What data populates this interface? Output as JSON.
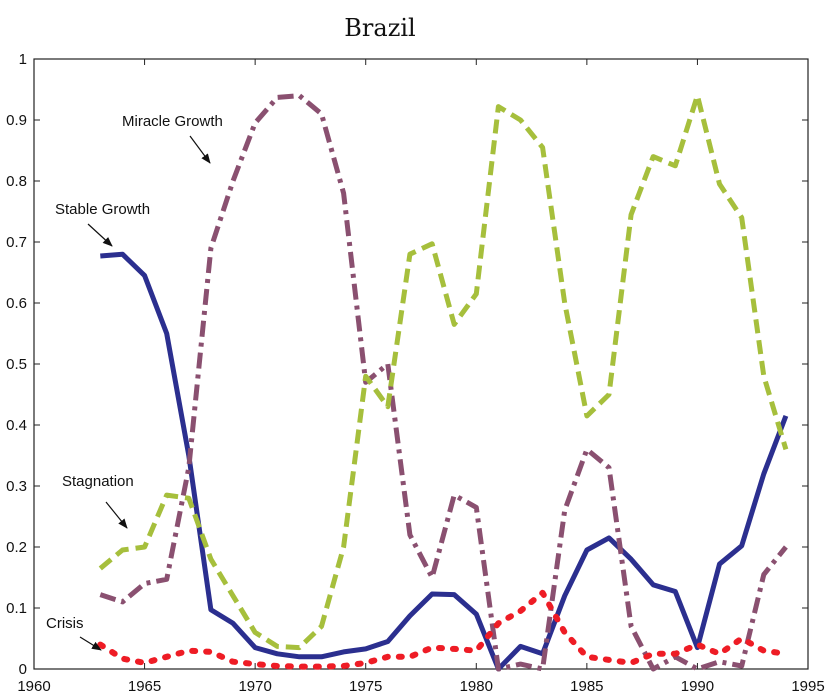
{
  "chart_data": {
    "type": "line",
    "title": "Brazil",
    "xlabel": "",
    "ylabel": "",
    "xlim": [
      1960,
      1995
    ],
    "ylim": [
      0,
      1
    ],
    "grid": false,
    "x_ticks": [
      "1960",
      "1965",
      "1970",
      "1975",
      "1980",
      "1985",
      "1990",
      "1995"
    ],
    "y_ticks": [
      "0",
      "0.1",
      "0.2",
      "0.3",
      "0.4",
      "0.5",
      "0.6",
      "0.7",
      "0.8",
      "0.9",
      "1"
    ],
    "x": [
      1963,
      1964,
      1965,
      1966,
      1967,
      1968,
      1969,
      1970,
      1971,
      1972,
      1973,
      1974,
      1975,
      1976,
      1977,
      1978,
      1979,
      1980,
      1981,
      1982,
      1983,
      1984,
      1985,
      1986,
      1987,
      1988,
      1989,
      1990,
      1991,
      1992,
      1993,
      1994
    ],
    "series": [
      {
        "name": "Stable Growth",
        "color": "#2b2f8f",
        "dash": "solid",
        "values": [
          0.677,
          0.68,
          0.645,
          0.55,
          0.35,
          0.097,
          0.075,
          0.035,
          0.025,
          0.02,
          0.02,
          0.028,
          0.033,
          0.045,
          0.087,
          0.123,
          0.122,
          0.09,
          0.0,
          0.037,
          0.025,
          0.12,
          0.195,
          0.215,
          0.18,
          0.138,
          0.127,
          0.035,
          0.172,
          0.202,
          0.32,
          0.415
        ]
      },
      {
        "name": "Miracle Growth",
        "color": "#8a5070",
        "dash": "dashdot",
        "values": [
          0.122,
          0.11,
          0.14,
          0.147,
          0.33,
          0.69,
          0.8,
          0.895,
          0.937,
          0.94,
          0.91,
          0.78,
          0.47,
          0.5,
          0.22,
          0.15,
          0.285,
          0.265,
          0.0,
          0.008,
          0.0,
          0.26,
          0.36,
          0.33,
          0.07,
          0.0,
          0.02,
          0.0,
          0.012,
          0.005,
          0.155,
          0.2
        ]
      },
      {
        "name": "Stagnation",
        "color": "#a6bf3c",
        "dash": "dash",
        "values": [
          0.165,
          0.195,
          0.2,
          0.285,
          0.28,
          0.18,
          0.12,
          0.06,
          0.037,
          0.035,
          0.07,
          0.2,
          0.48,
          0.43,
          0.68,
          0.697,
          0.565,
          0.615,
          0.922,
          0.9,
          0.855,
          0.6,
          0.415,
          0.45,
          0.745,
          0.84,
          0.825,
          0.94,
          0.795,
          0.74,
          0.48,
          0.36
        ]
      },
      {
        "name": "Crisis",
        "color": "#ee1c25",
        "dash": "dot",
        "values": [
          0.04,
          0.017,
          0.01,
          0.02,
          0.03,
          0.028,
          0.012,
          0.008,
          0.005,
          0.004,
          0.004,
          0.005,
          0.01,
          0.02,
          0.02,
          0.035,
          0.033,
          0.03,
          0.075,
          0.095,
          0.125,
          0.06,
          0.02,
          0.015,
          0.01,
          0.025,
          0.025,
          0.04,
          0.025,
          0.05,
          0.03,
          0.025
        ]
      }
    ],
    "annotations": [
      {
        "text": "Miracle Growth",
        "series": "Miracle Growth"
      },
      {
        "text": "Stable Growth",
        "series": "Stable Growth"
      },
      {
        "text": "Stagnation",
        "series": "Stagnation"
      },
      {
        "text": "Crisis",
        "series": "Crisis"
      }
    ]
  }
}
